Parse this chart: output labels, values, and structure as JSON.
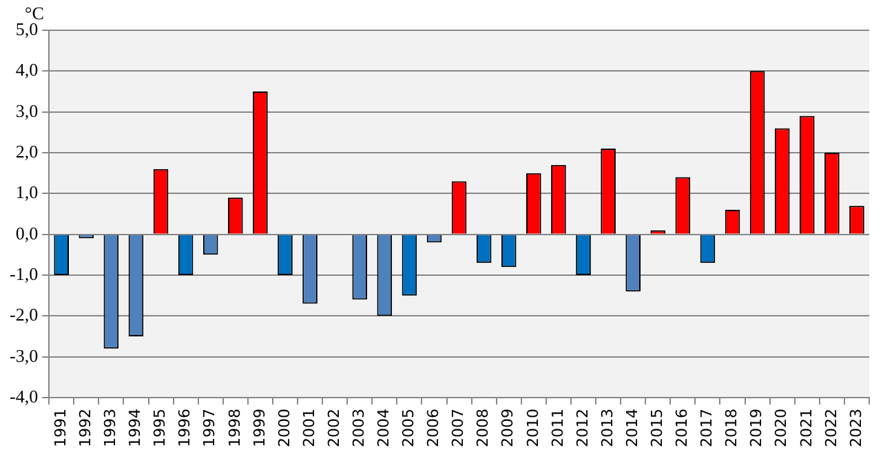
{
  "chart_data": {
    "type": "bar",
    "ylabel": "°C",
    "categories": [
      "1991",
      "1992",
      "1993",
      "1994",
      "1995",
      "1996",
      "1997",
      "1998",
      "1999",
      "2000",
      "2001",
      "2002",
      "2003",
      "2004",
      "2005",
      "2006",
      "2007",
      "2008",
      "2009",
      "2010",
      "2011",
      "2012",
      "2013",
      "2014",
      "2015",
      "2016",
      "2017",
      "2018",
      "2019",
      "2020",
      "2021",
      "2022",
      "2023"
    ],
    "values": [
      -1.0,
      -0.1,
      -2.8,
      -2.5,
      1.6,
      -1.0,
      -0.5,
      0.9,
      3.5,
      -1.0,
      -1.7,
      0,
      -1.6,
      -2.0,
      -1.5,
      -0.2,
      1.3,
      -0.7,
      -0.8,
      1.5,
      1.7,
      -1.0,
      2.1,
      -1.4,
      0.1,
      1.4,
      -0.7,
      0.6,
      4.0,
      2.6,
      2.9,
      2.0,
      0.7
    ],
    "colors": [
      "#0070c0",
      "#4f81bd",
      "#4f81bd",
      "#4f81bd",
      "#ff0000",
      "#0070c0",
      "#4f81bd",
      "#ff0000",
      "#ff0000",
      "#0070c0",
      "#4f81bd",
      "#4f81bd",
      "#4f81bd",
      "#4f81bd",
      "#0070c0",
      "#4f81bd",
      "#ff0000",
      "#0070c0",
      "#0070c0",
      "#ff0000",
      "#ff0000",
      "#0070c0",
      "#ff0000",
      "#4f81bd",
      "#ff0000",
      "#ff0000",
      "#0070c0",
      "#ff0000",
      "#ff0000",
      "#ff0000",
      "#ff0000",
      "#ff0000",
      "#ff0000"
    ],
    "ylim": [
      -4,
      5
    ],
    "yticks": [
      {
        "value": -4,
        "label": "-4,0"
      },
      {
        "value": -3,
        "label": "-3,0"
      },
      {
        "value": -2,
        "label": "-2,0"
      },
      {
        "value": -1,
        "label": "-1,0"
      },
      {
        "value": 0,
        "label": "0,0"
      },
      {
        "value": 1,
        "label": "1,0"
      },
      {
        "value": 2,
        "label": "2,0"
      },
      {
        "value": 3,
        "label": "3,0"
      },
      {
        "value": 4,
        "label": "4,0"
      },
      {
        "value": 5,
        "label": "5,0"
      }
    ],
    "grid": "y"
  }
}
